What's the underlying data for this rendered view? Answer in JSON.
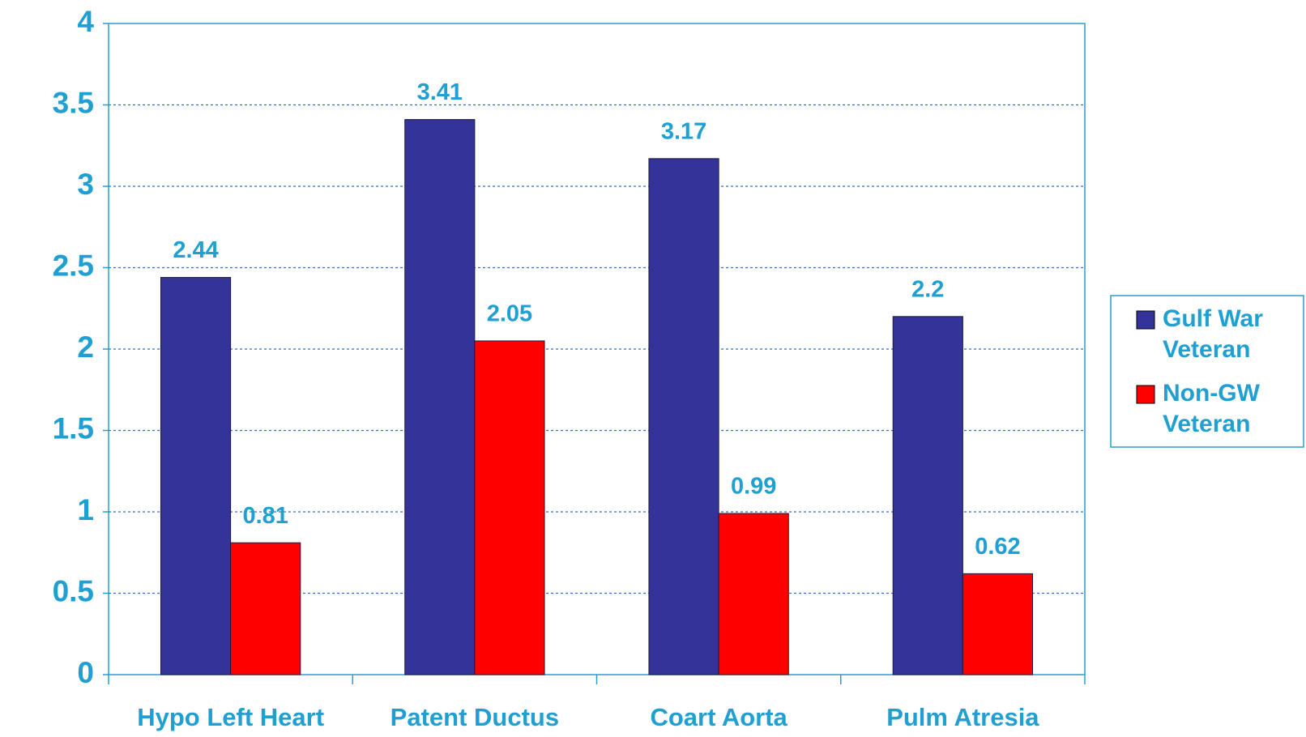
{
  "chart_data": {
    "type": "bar",
    "categories": [
      "Hypo Left Heart",
      "Patent Ductus",
      "Coart Aorta",
      "Pulm Atresia"
    ],
    "series": [
      {
        "name": "Gulf War Veteran",
        "color": "#333399",
        "values": [
          2.44,
          3.41,
          3.17,
          2.2
        ]
      },
      {
        "name": "Non-GW Veteran",
        "color": "#ff0000",
        "values": [
          0.81,
          2.05,
          0.99,
          0.62
        ]
      }
    ],
    "ylim": [
      0,
      4
    ],
    "yticks": [
      0,
      0.5,
      1,
      1.5,
      2,
      2.5,
      3,
      3.5,
      4
    ],
    "grid": true,
    "legend": "right"
  }
}
